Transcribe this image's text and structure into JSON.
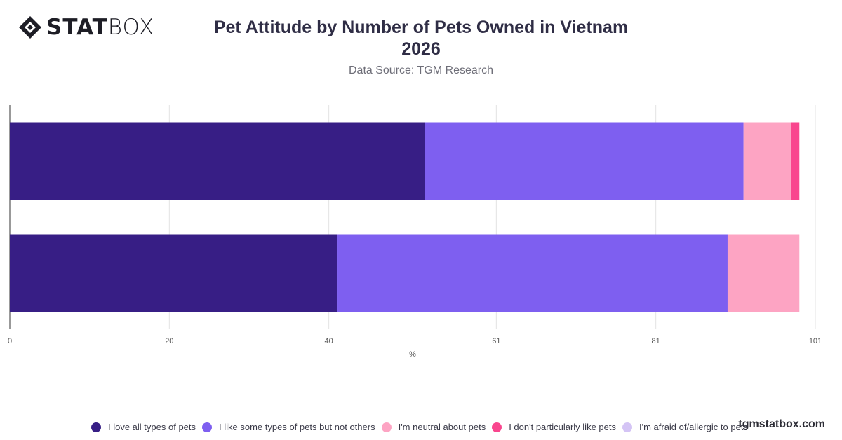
{
  "logo": {
    "bold": "STAT",
    "light": "BOX"
  },
  "title_line1": "Pet Attitude by Number of Pets Owned in Vietnam",
  "title_line2": "2026",
  "subtitle": "Data Source: TGM Research",
  "watermark": "tgmstatbox.com",
  "chart_data": {
    "type": "bar",
    "orientation": "horizontal",
    "stacked": true,
    "categories": [
      "",
      ""
    ],
    "series": [
      {
        "name": "I love all types of pets",
        "color": "#371e85",
        "values": [
          52.0,
          41.0
        ]
      },
      {
        "name": "I like some types of pets but not others",
        "color": "#7e5ff0",
        "values": [
          40.0,
          49.0
        ]
      },
      {
        "name": "I'm neutral about pets",
        "color": "#fda4c3",
        "values": [
          6.0,
          9.0
        ]
      },
      {
        "name": "I don't particularly like pets",
        "color": "#f9468e",
        "values": [
          1.0,
          0.0
        ]
      },
      {
        "name": "I'm afraid of/allergic to pets",
        "color": "#d4c4f5",
        "values": [
          0.0,
          0.0
        ]
      }
    ],
    "xlim": [
      0,
      101
    ],
    "xticks": [
      "0",
      "20",
      "40",
      "61",
      "81",
      "101"
    ],
    "xlabel": "%",
    "ylabel": "",
    "grid": true,
    "legend_position": "bottom"
  }
}
